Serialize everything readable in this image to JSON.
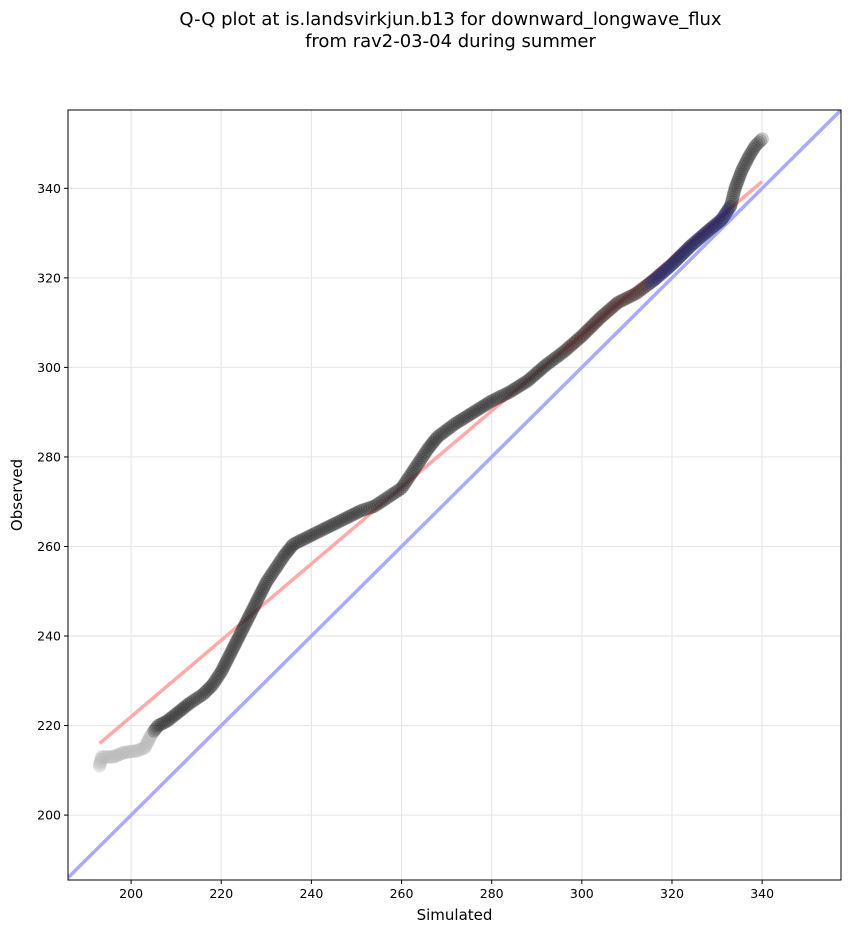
{
  "chart_data": {
    "type": "scatter",
    "title_lines": [
      "Q-Q plot at is.landsvirkjun.b13 for downward_longwave_flux",
      "from rav2-03-04 during summer"
    ],
    "xlabel": "Simulated",
    "ylabel": "Observed",
    "xlim": [
      186,
      357.5
    ],
    "ylim": [
      185.5,
      357.5
    ],
    "xticks": [
      200,
      220,
      240,
      260,
      280,
      300,
      320,
      340
    ],
    "yticks": [
      200,
      220,
      240,
      260,
      280,
      300,
      320,
      340
    ],
    "grid": true,
    "reference_line": {
      "name": "1:1",
      "color": "#aaaaff",
      "from": [
        186,
        186
      ],
      "to": [
        357.5,
        357.5
      ]
    },
    "fit_line": {
      "color": "#ffaaaa",
      "from": [
        193,
        216
      ],
      "to": [
        340,
        341.5
      ]
    },
    "quantile_curve": [
      [
        193,
        211
      ],
      [
        193.5,
        213
      ],
      [
        196,
        213
      ],
      [
        198.5,
        214
      ],
      [
        201,
        214.3
      ],
      [
        203,
        215
      ],
      [
        204.5,
        218
      ],
      [
        206,
        220
      ],
      [
        208,
        221
      ],
      [
        210.5,
        223
      ],
      [
        213,
        225
      ],
      [
        216,
        227
      ],
      [
        218,
        229
      ],
      [
        220,
        232
      ],
      [
        222,
        236
      ],
      [
        224,
        240
      ],
      [
        226,
        244
      ],
      [
        228,
        248
      ],
      [
        230,
        252
      ],
      [
        232,
        255
      ],
      [
        234,
        258
      ],
      [
        236,
        260.5
      ],
      [
        239,
        262
      ],
      [
        242,
        263.5
      ],
      [
        245,
        265
      ],
      [
        248,
        266.5
      ],
      [
        251,
        268
      ],
      [
        254,
        269
      ],
      [
        257,
        271
      ],
      [
        260,
        273
      ],
      [
        262,
        276
      ],
      [
        264,
        279
      ],
      [
        266,
        282
      ],
      [
        268,
        284.5
      ],
      [
        272,
        287.5
      ],
      [
        276,
        290
      ],
      [
        280,
        292.5
      ],
      [
        284,
        294.5
      ],
      [
        288,
        297
      ],
      [
        292,
        300.5
      ],
      [
        296,
        303.5
      ],
      [
        300,
        307
      ],
      [
        304,
        311
      ],
      [
        308,
        314.5
      ],
      [
        312,
        316.5
      ],
      [
        316,
        319.5
      ],
      [
        320,
        323
      ],
      [
        324,
        327
      ],
      [
        328,
        330.5
      ],
      [
        331,
        333
      ],
      [
        333,
        336
      ],
      [
        334,
        340
      ],
      [
        335.5,
        344
      ],
      [
        337,
        347
      ],
      [
        338.5,
        349.5
      ],
      [
        340,
        351
      ]
    ],
    "quantile_colors": {
      "tail": "#bbbbbb",
      "body": "#222222",
      "upper_mid": "#3a2222",
      "upper": "#1a1a55"
    }
  }
}
